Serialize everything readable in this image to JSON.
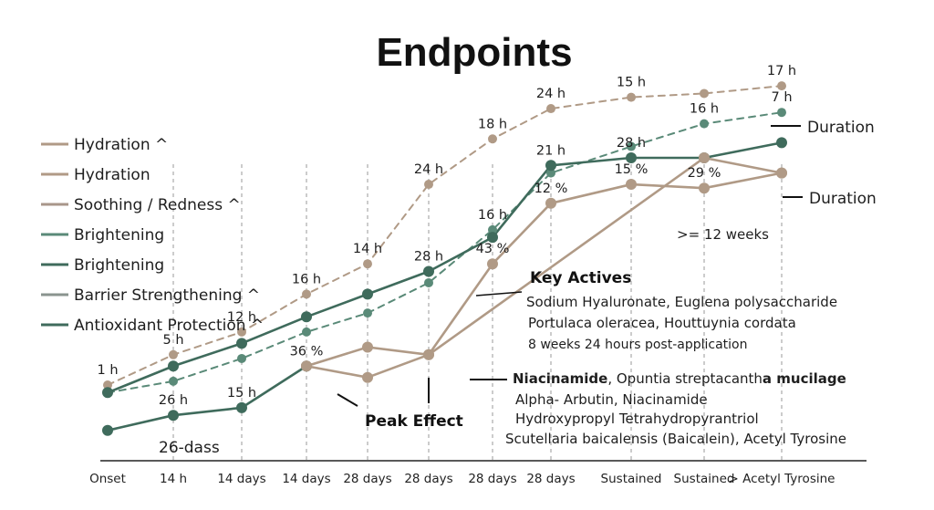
{
  "chart_data": {
    "type": "line",
    "title": "Endpoints",
    "categories": [
      "Onset",
      "14 h",
      "14 days",
      "14 days",
      "28 days",
      "28 days",
      "28 days",
      "28 days",
      "Sustained",
      "Sustained",
      "> Acetyl Tyrosine"
    ],
    "ylim": [
      0,
      100
    ],
    "legend": {
      "placement": "left",
      "items": [
        {
          "label": "Hydration ^",
          "color": "#b09a86"
        },
        {
          "label": "Hydration",
          "color": "#b09a86"
        },
        {
          "label": "Soothing / Redness ^",
          "color": "#a8968a"
        },
        {
          "label": "Brightening",
          "color": "#5a8a78"
        },
        {
          "label": "Brightening",
          "color": "#3f6b5c"
        },
        {
          "label": "Barrier Strengthening ^",
          "color": "#8a948f"
        },
        {
          "label": "Antioxidant Protection ^",
          "color": "#3f6b5c"
        }
      ]
    },
    "series": [
      {
        "style": "dashed",
        "color": "#b09a86",
        "values": [
          20,
          28,
          34,
          44,
          52,
          73,
          85,
          93,
          96,
          97,
          99
        ],
        "labels": [
          "1 h",
          "5 h",
          "12 h",
          "16 h",
          "14 h",
          "24 h",
          "18 h",
          "24 h",
          "15 h",
          "",
          "17 h"
        ]
      },
      {
        "style": "dashed",
        "color": "#5a8a78",
        "values": [
          18,
          21,
          27,
          34,
          39,
          47,
          61,
          76,
          83,
          89,
          92
        ],
        "labels": [
          "",
          "",
          "",
          "",
          "",
          "",
          "16 h",
          "",
          "",
          "16 h",
          "7 h"
        ]
      },
      {
        "style": "solid",
        "color": "#3f6b5c",
        "values": [
          18,
          25,
          31,
          38,
          44,
          50,
          59,
          78,
          80,
          80,
          84
        ],
        "labels": [
          "",
          "",
          "",
          "",
          "",
          "28 h",
          "",
          "21 h",
          "28 h",
          "",
          ""
        ]
      },
      {
        "style": "solid",
        "color": "#3f6b5c",
        "values": [
          8,
          12,
          14,
          25,
          "",
          "",
          "",
          "",
          "",
          "",
          ""
        ],
        "labels": [
          "",
          "26 h",
          "15 h",
          "",
          "",
          "",
          "",
          "",
          "",
          "",
          ""
        ]
      },
      {
        "style": "solid",
        "color": "#b09a86",
        "values": [
          "",
          "",
          "",
          25,
          30,
          28,
          52,
          68,
          73,
          72,
          76
        ],
        "labels": [
          "",
          "",
          "",
          "36 %",
          "",
          "",
          "43 %",
          "12 %",
          "15 %",
          "29 %",
          ""
        ]
      },
      {
        "style": "solid",
        "color": "#b09a86",
        "values": [
          "",
          "",
          "",
          25,
          22,
          28,
          "",
          "",
          "",
          80,
          76
        ],
        "labels": [
          "",
          "",
          "",
          "",
          "",
          "",
          "",
          "",
          "",
          "",
          ""
        ]
      }
    ],
    "annotations": {
      "onset_label": "26-dass",
      "peak_effect": "Peak Effect",
      "duration_1": "Duration",
      "duration_2": "Duration",
      "weeks": ">= 12 weeks",
      "key_actives": "Key Actives",
      "ka_lines": [
        "Sodium Hyaluronate, Euglena polysaccharide",
        "Portulaca oleracea, Houttuynia cordata",
        "8 weeks 24 hours post-application"
      ],
      "actives_2_bold_a": "Niacinamide",
      "actives_2_normal": ", Opuntia streptacanth",
      "actives_2_bold_b": "a mucilage",
      "ka2_lines": [
        "Alpha- Arbutin, Niacinamide",
        "Hydroxypropyl Tetrahydropyrantriol",
        "Scutellaria baicalensis (Baicalein), Acetyl Tyrosine"
      ]
    }
  }
}
